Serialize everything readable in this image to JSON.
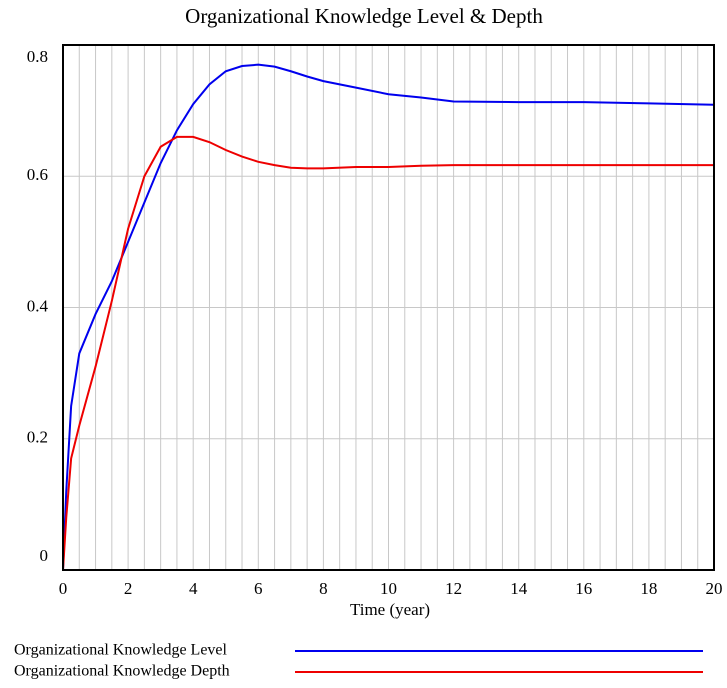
{
  "chart_data": {
    "type": "line",
    "title": "Organizational Knowledge Level & Depth",
    "x_label": "Time (year)",
    "x": [
      0,
      0.1,
      0.25,
      0.5,
      1,
      1.5,
      2,
      2.5,
      3,
      3.5,
      4,
      4.5,
      5,
      5.5,
      6,
      6.5,
      7,
      7.5,
      8,
      9,
      10,
      11,
      12,
      14,
      16,
      18,
      20
    ],
    "series": [
      {
        "name": "Organizational Knowledge Level",
        "color": "#0000ee",
        "values": [
          0,
          0.12,
          0.25,
          0.33,
          0.39,
          0.44,
          0.5,
          0.56,
          0.62,
          0.67,
          0.71,
          0.74,
          0.76,
          0.768,
          0.77,
          0.767,
          0.76,
          0.752,
          0.745,
          0.735,
          0.725,
          0.72,
          0.714,
          0.713,
          0.713,
          0.711,
          0.709
        ]
      },
      {
        "name": "Organizational Knowledge Depth",
        "color": "#ee0000",
        "values": [
          0,
          0.08,
          0.17,
          0.22,
          0.31,
          0.41,
          0.52,
          0.6,
          0.645,
          0.66,
          0.66,
          0.652,
          0.64,
          0.63,
          0.622,
          0.617,
          0.613,
          0.612,
          0.612,
          0.614,
          0.614,
          0.616,
          0.617,
          0.617,
          0.617,
          0.617,
          0.617
        ]
      }
    ],
    "xlim": [
      0,
      20
    ],
    "xticks": [
      0,
      2,
      4,
      6,
      8,
      10,
      12,
      14,
      16,
      18,
      20
    ],
    "ylim": [
      0,
      0.8
    ],
    "yticks": [
      0,
      0.2,
      0.4,
      0.6,
      0.8
    ],
    "grid": true
  }
}
